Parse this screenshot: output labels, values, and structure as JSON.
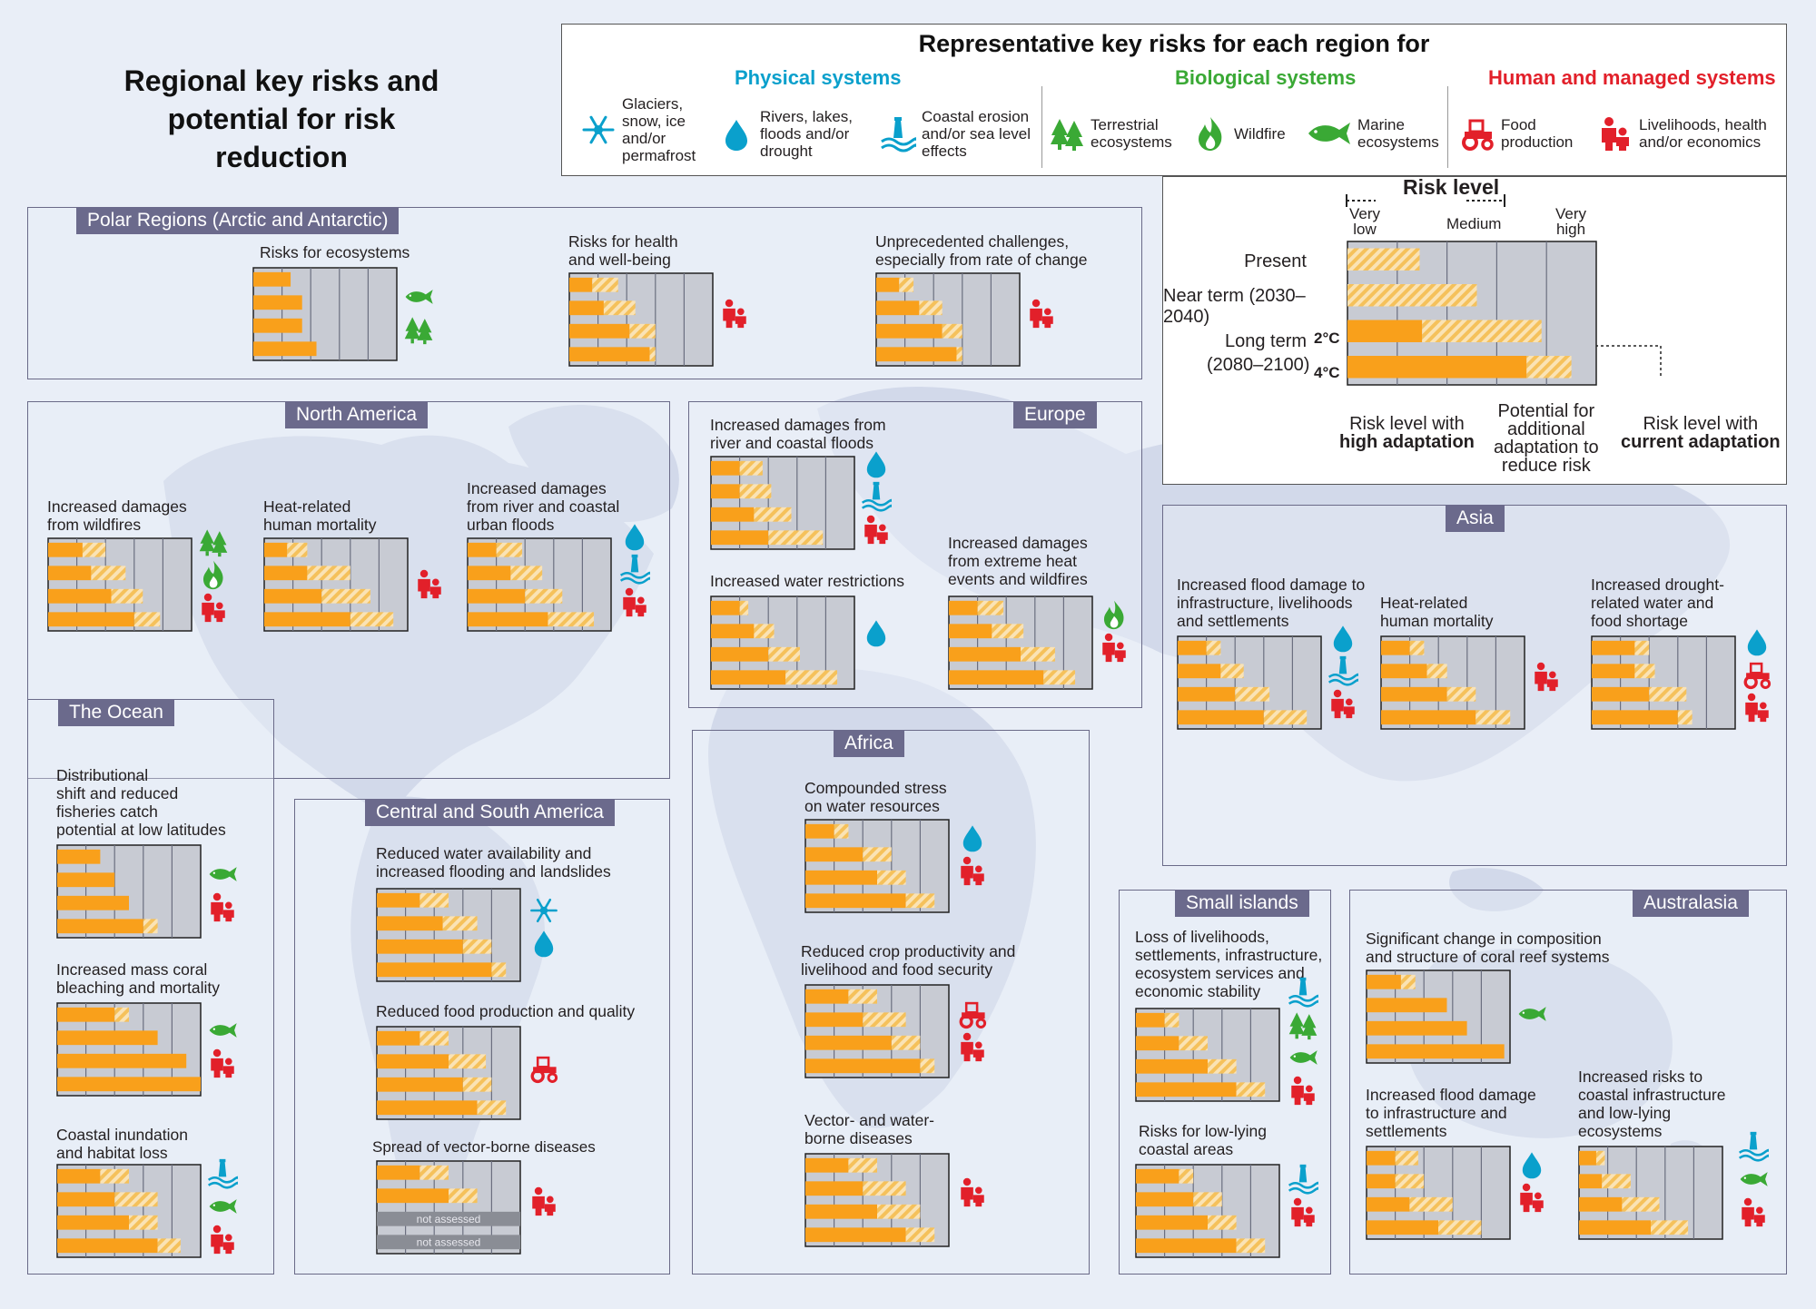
{
  "title": "Regional key risks and potential for risk reduction",
  "title_lines": [
    "Regional key risks and",
    "potential for risk reduction"
  ],
  "colors": {
    "physical": "#0aa0cc",
    "biological": "#3aa935",
    "human": "#e2202a",
    "risk_solid": "#f9a01b",
    "risk_hatch": "#f5c15b",
    "panel_bg": "#c8cbd3",
    "region_label": "#6b6a8c"
  },
  "legend": {
    "title": "Representative key risks for each region for",
    "categories": [
      {
        "name": "Physical systems",
        "items": [
          {
            "icon": "snowflake-icon",
            "label_lines": [
              "Glaciers,",
              "snow, ice",
              "and/or",
              "permafrost"
            ]
          },
          {
            "icon": "water-drop-icon",
            "label_lines": [
              "Rivers, lakes,",
              "floods and/or",
              "drought"
            ]
          },
          {
            "icon": "lighthouse-wave-icon",
            "label_lines": [
              "Coastal erosion",
              "and/or sea level",
              "effects"
            ]
          }
        ]
      },
      {
        "name": "Biological systems",
        "items": [
          {
            "icon": "trees-icon",
            "label_lines": [
              "Terrestrial",
              "ecosystems"
            ]
          },
          {
            "icon": "flame-icon",
            "label_lines": [
              "Wildfire"
            ]
          },
          {
            "icon": "fish-icon",
            "label_lines": [
              "Marine",
              "ecosystems"
            ]
          }
        ]
      },
      {
        "name": "Human and managed systems",
        "items": [
          {
            "icon": "tractor-icon",
            "label_lines": [
              "Food",
              "production"
            ]
          },
          {
            "icon": "people-icon",
            "label_lines": [
              "Livelihoods, health",
              "and/or economics"
            ]
          }
        ]
      }
    ]
  },
  "risk_key": {
    "title": "Risk level",
    "levels": [
      "Very low",
      "Medium",
      "Very high"
    ],
    "level_lines": [
      [
        "Very",
        "low"
      ],
      [
        "Medium"
      ],
      [
        "Very",
        "high"
      ]
    ],
    "rows": [
      "Present",
      "Near term (2030–2040)",
      "Long term",
      "(2080–2100)"
    ],
    "temps": [
      "2°C",
      "4°C"
    ],
    "example": [
      [
        0,
        1.45
      ],
      [
        0,
        2.6
      ],
      [
        1.5,
        3.9
      ],
      [
        3.6,
        4.5
      ]
    ],
    "annotations": {
      "high_lines": [
        "Risk level with",
        "high adaptation"
      ],
      "potential_lines": [
        "Potential for",
        "additional",
        "adaptation to",
        "reduce risk"
      ],
      "current_lines": [
        "Risk level with",
        "current adaptation"
      ]
    }
  },
  "chart_data": {
    "type": "bar",
    "scale": "risk level from very low (0) to very high (5); each panel shows present, near term (2030–2040), long term 2°C and long term 4°C (2080–2100); each row gives the risk level with high adaptation and with current adaptation",
    "regions": [
      {
        "name": "Polar Regions (Arctic and Antarctic)",
        "risks": [
          {
            "title_lines": [
              "Risks for ecosystems"
            ],
            "icons": [
              "fish-icon",
              "trees-icon"
            ],
            "bars": [
              [
                1.3,
                1.3
              ],
              [
                1.7,
                1.7
              ],
              [
                1.7,
                1.7
              ],
              [
                2.2,
                2.2
              ]
            ]
          },
          {
            "title_lines": [
              "Risks for health",
              "and well-being"
            ],
            "icons": [
              "people-icon"
            ],
            "bars": [
              [
                0.8,
                1.7
              ],
              [
                1.2,
                2.3
              ],
              [
                2.1,
                3.0
              ],
              [
                2.8,
                3.0
              ]
            ]
          },
          {
            "title_lines": [
              "Unprecedented challenges,",
              "especially from rate of change"
            ],
            "icons": [
              "people-icon"
            ],
            "bars": [
              [
                0.8,
                1.3
              ],
              [
                1.5,
                2.3
              ],
              [
                2.3,
                3.0
              ],
              [
                2.8,
                3.0
              ]
            ]
          }
        ]
      },
      {
        "name": "North America",
        "risks": [
          {
            "title_lines": [
              "Increased damages",
              "from wildfires"
            ],
            "icons": [
              "trees-icon",
              "flame-icon",
              "people-icon"
            ],
            "bars": [
              [
                1.2,
                2.0
              ],
              [
                1.5,
                2.7
              ],
              [
                2.2,
                3.3
              ],
              [
                3.0,
                3.9
              ]
            ]
          },
          {
            "title_lines": [
              "Heat-related",
              "human mortality"
            ],
            "icons": [
              "people-icon"
            ],
            "bars": [
              [
                0.8,
                1.5
              ],
              [
                1.5,
                3.0
              ],
              [
                2.0,
                3.7
              ],
              [
                3.0,
                4.5
              ]
            ]
          },
          {
            "title_lines": [
              "Increased damages",
              "from river and coastal",
              "urban floods"
            ],
            "icons": [
              "water-drop-icon",
              "lighthouse-wave-icon",
              "people-icon"
            ],
            "bars": [
              [
                1.0,
                1.9
              ],
              [
                1.5,
                2.6
              ],
              [
                2.0,
                3.3
              ],
              [
                2.8,
                4.4
              ]
            ]
          }
        ]
      },
      {
        "name": "Europe",
        "risks": [
          {
            "title_lines": [
              "Increased damages from",
              "river and coastal floods"
            ],
            "icons": [
              "water-drop-icon",
              "lighthouse-wave-icon",
              "people-icon"
            ],
            "bars": [
              [
                1.0,
                1.8
              ],
              [
                1.0,
                2.1
              ],
              [
                1.5,
                2.8
              ],
              [
                2.0,
                3.9
              ]
            ]
          },
          {
            "title_lines": [
              "Increased water restrictions"
            ],
            "icons": [
              "water-drop-icon"
            ],
            "bars": [
              [
                1.0,
                1.3
              ],
              [
                1.5,
                2.2
              ],
              [
                2.0,
                3.1
              ],
              [
                2.6,
                4.4
              ]
            ]
          },
          {
            "title_lines": [
              "Increased damages",
              "from extreme heat",
              "events and wildfires"
            ],
            "icons": [
              "flame-icon",
              "people-icon"
            ],
            "bars": [
              [
                1.0,
                1.9
              ],
              [
                1.5,
                2.6
              ],
              [
                2.5,
                3.7
              ],
              [
                3.3,
                4.4
              ]
            ]
          }
        ]
      },
      {
        "name": "Asia",
        "risks": [
          {
            "title_lines": [
              "Increased flood damage to",
              "infrastructure, livelihoods",
              "and settlements"
            ],
            "icons": [
              "water-drop-icon",
              "lighthouse-wave-icon",
              "people-icon"
            ],
            "bars": [
              [
                1.0,
                1.5
              ],
              [
                1.5,
                2.3
              ],
              [
                2.0,
                3.2
              ],
              [
                3.0,
                4.5
              ]
            ]
          },
          {
            "title_lines": [
              "Heat-related",
              "human mortality"
            ],
            "icons": [
              "people-icon"
            ],
            "bars": [
              [
                1.0,
                1.5
              ],
              [
                1.6,
                2.3
              ],
              [
                2.3,
                3.3
              ],
              [
                3.3,
                4.5
              ]
            ]
          },
          {
            "title_lines": [
              "Increased drought-",
              "related water and",
              "food shortage"
            ],
            "icons": [
              "water-drop-icon",
              "tractor-icon",
              "people-icon"
            ],
            "bars": [
              [
                1.5,
                2.0
              ],
              [
                1.5,
                2.2
              ],
              [
                2.0,
                3.3
              ],
              [
                3.0,
                3.5
              ]
            ]
          }
        ]
      },
      {
        "name": "The Ocean",
        "risks": [
          {
            "title_lines": [
              "Distributional",
              "shift and reduced",
              "fisheries catch",
              "potential at low latitudes"
            ],
            "icons": [
              "fish-icon",
              "people-icon"
            ],
            "bars": [
              [
                1.5,
                1.5
              ],
              [
                2.0,
                2.0
              ],
              [
                2.5,
                2.5
              ],
              [
                3.0,
                3.5
              ]
            ]
          },
          {
            "title_lines": [
              "Increased mass coral",
              "bleaching and mortality"
            ],
            "icons": [
              "fish-icon",
              "people-icon"
            ],
            "bars": [
              [
                2.0,
                2.5
              ],
              [
                3.5,
                3.5
              ],
              [
                4.5,
                4.5
              ],
              [
                5.0,
                5.0
              ]
            ]
          },
          {
            "title_lines": [
              "Coastal inundation",
              "and habitat loss"
            ],
            "icons": [
              "lighthouse-wave-icon",
              "fish-icon",
              "people-icon"
            ],
            "bars": [
              [
                1.5,
                2.5
              ],
              [
                2.0,
                3.5
              ],
              [
                2.5,
                3.5
              ],
              [
                3.5,
                4.3
              ]
            ]
          }
        ]
      },
      {
        "name": "Central and South America",
        "risks": [
          {
            "title_lines": [
              "Reduced water availability and",
              "increased flooding and landslides"
            ],
            "icons": [
              "snowflake-icon",
              "water-drop-icon"
            ],
            "bars": [
              [
                1.5,
                2.5
              ],
              [
                2.3,
                3.5
              ],
              [
                3.0,
                4.0
              ],
              [
                4.0,
                4.5
              ]
            ]
          },
          {
            "title_lines": [
              "Reduced food production and quality"
            ],
            "icons": [
              "tractor-icon"
            ],
            "bars": [
              [
                1.5,
                2.5
              ],
              [
                2.5,
                3.8
              ],
              [
                3.0,
                4.0
              ],
              [
                3.5,
                4.5
              ]
            ]
          },
          {
            "title_lines": [
              "Spread of vector-borne diseases"
            ],
            "icons": [
              "people-icon"
            ],
            "bars": [
              [
                1.5,
                2.5
              ],
              [
                2.5,
                3.5
              ],
              null,
              null
            ],
            "not_assessed_label": "not assessed"
          }
        ]
      },
      {
        "name": "Africa",
        "risks": [
          {
            "title_lines": [
              "Compounded stress",
              "on water resources"
            ],
            "icons": [
              "water-drop-icon",
              "people-icon"
            ],
            "bars": [
              [
                1.0,
                1.5
              ],
              [
                2.0,
                3.0
              ],
              [
                2.5,
                3.5
              ],
              [
                3.5,
                4.5
              ]
            ]
          },
          {
            "title_lines": [
              "Reduced crop productivity and",
              "livelihood and food security"
            ],
            "icons": [
              "tractor-icon",
              "people-icon"
            ],
            "bars": [
              [
                1.5,
                2.5
              ],
              [
                2.0,
                3.5
              ],
              [
                3.0,
                4.0
              ],
              [
                4.0,
                4.5
              ]
            ]
          },
          {
            "title_lines": [
              "Vector- and water-",
              "borne diseases"
            ],
            "icons": [
              "people-icon"
            ],
            "bars": [
              [
                1.5,
                2.5
              ],
              [
                2.0,
                3.5
              ],
              [
                2.5,
                4.0
              ],
              [
                3.5,
                4.5
              ]
            ]
          }
        ]
      },
      {
        "name": "Small islands",
        "risks": [
          {
            "title_lines": [
              "Loss of livelihoods,",
              "settlements, infrastructure,",
              "ecosystem services and",
              "economic stability"
            ],
            "icons": [
              "lighthouse-wave-icon",
              "trees-icon",
              "fish-icon",
              "people-icon"
            ],
            "bars": [
              [
                1.0,
                1.5
              ],
              [
                1.5,
                2.5
              ],
              [
                2.5,
                3.5
              ],
              [
                3.5,
                4.5
              ]
            ]
          },
          {
            "title_lines": [
              "Risks for low-lying",
              "coastal areas"
            ],
            "icons": [
              "lighthouse-wave-icon",
              "people-icon"
            ],
            "bars": [
              [
                1.5,
                2.0
              ],
              [
                2.0,
                3.0
              ],
              [
                2.5,
                3.5
              ],
              [
                3.5,
                4.5
              ]
            ]
          }
        ]
      },
      {
        "name": "Australasia",
        "risks": [
          {
            "title_lines": [
              "Significant change in composition",
              "and structure of coral reef systems"
            ],
            "icons": [
              "fish-icon"
            ],
            "bars": [
              [
                1.2,
                1.7
              ],
              [
                2.8,
                2.8
              ],
              [
                3.5,
                3.5
              ],
              [
                4.8,
                4.8
              ]
            ]
          },
          {
            "title_lines": [
              "Increased flood damage",
              "to infrastructure and",
              "settlements"
            ],
            "icons": [
              "water-drop-icon",
              "people-icon"
            ],
            "bars": [
              [
                1.0,
                1.8
              ],
              [
                1.0,
                2.0
              ],
              [
                1.5,
                3.0
              ],
              [
                2.5,
                4.0
              ]
            ]
          },
          {
            "title_lines": [
              "Increased risks to",
              "coastal infrastructure",
              "and low-lying",
              "ecosystems"
            ],
            "icons": [
              "lighthouse-wave-icon",
              "fish-icon",
              "people-icon"
            ],
            "bars": [
              [
                0.6,
                0.9
              ],
              [
                0.8,
                1.8
              ],
              [
                1.5,
                2.8
              ],
              [
                2.5,
                3.8
              ]
            ]
          }
        ]
      }
    ]
  }
}
